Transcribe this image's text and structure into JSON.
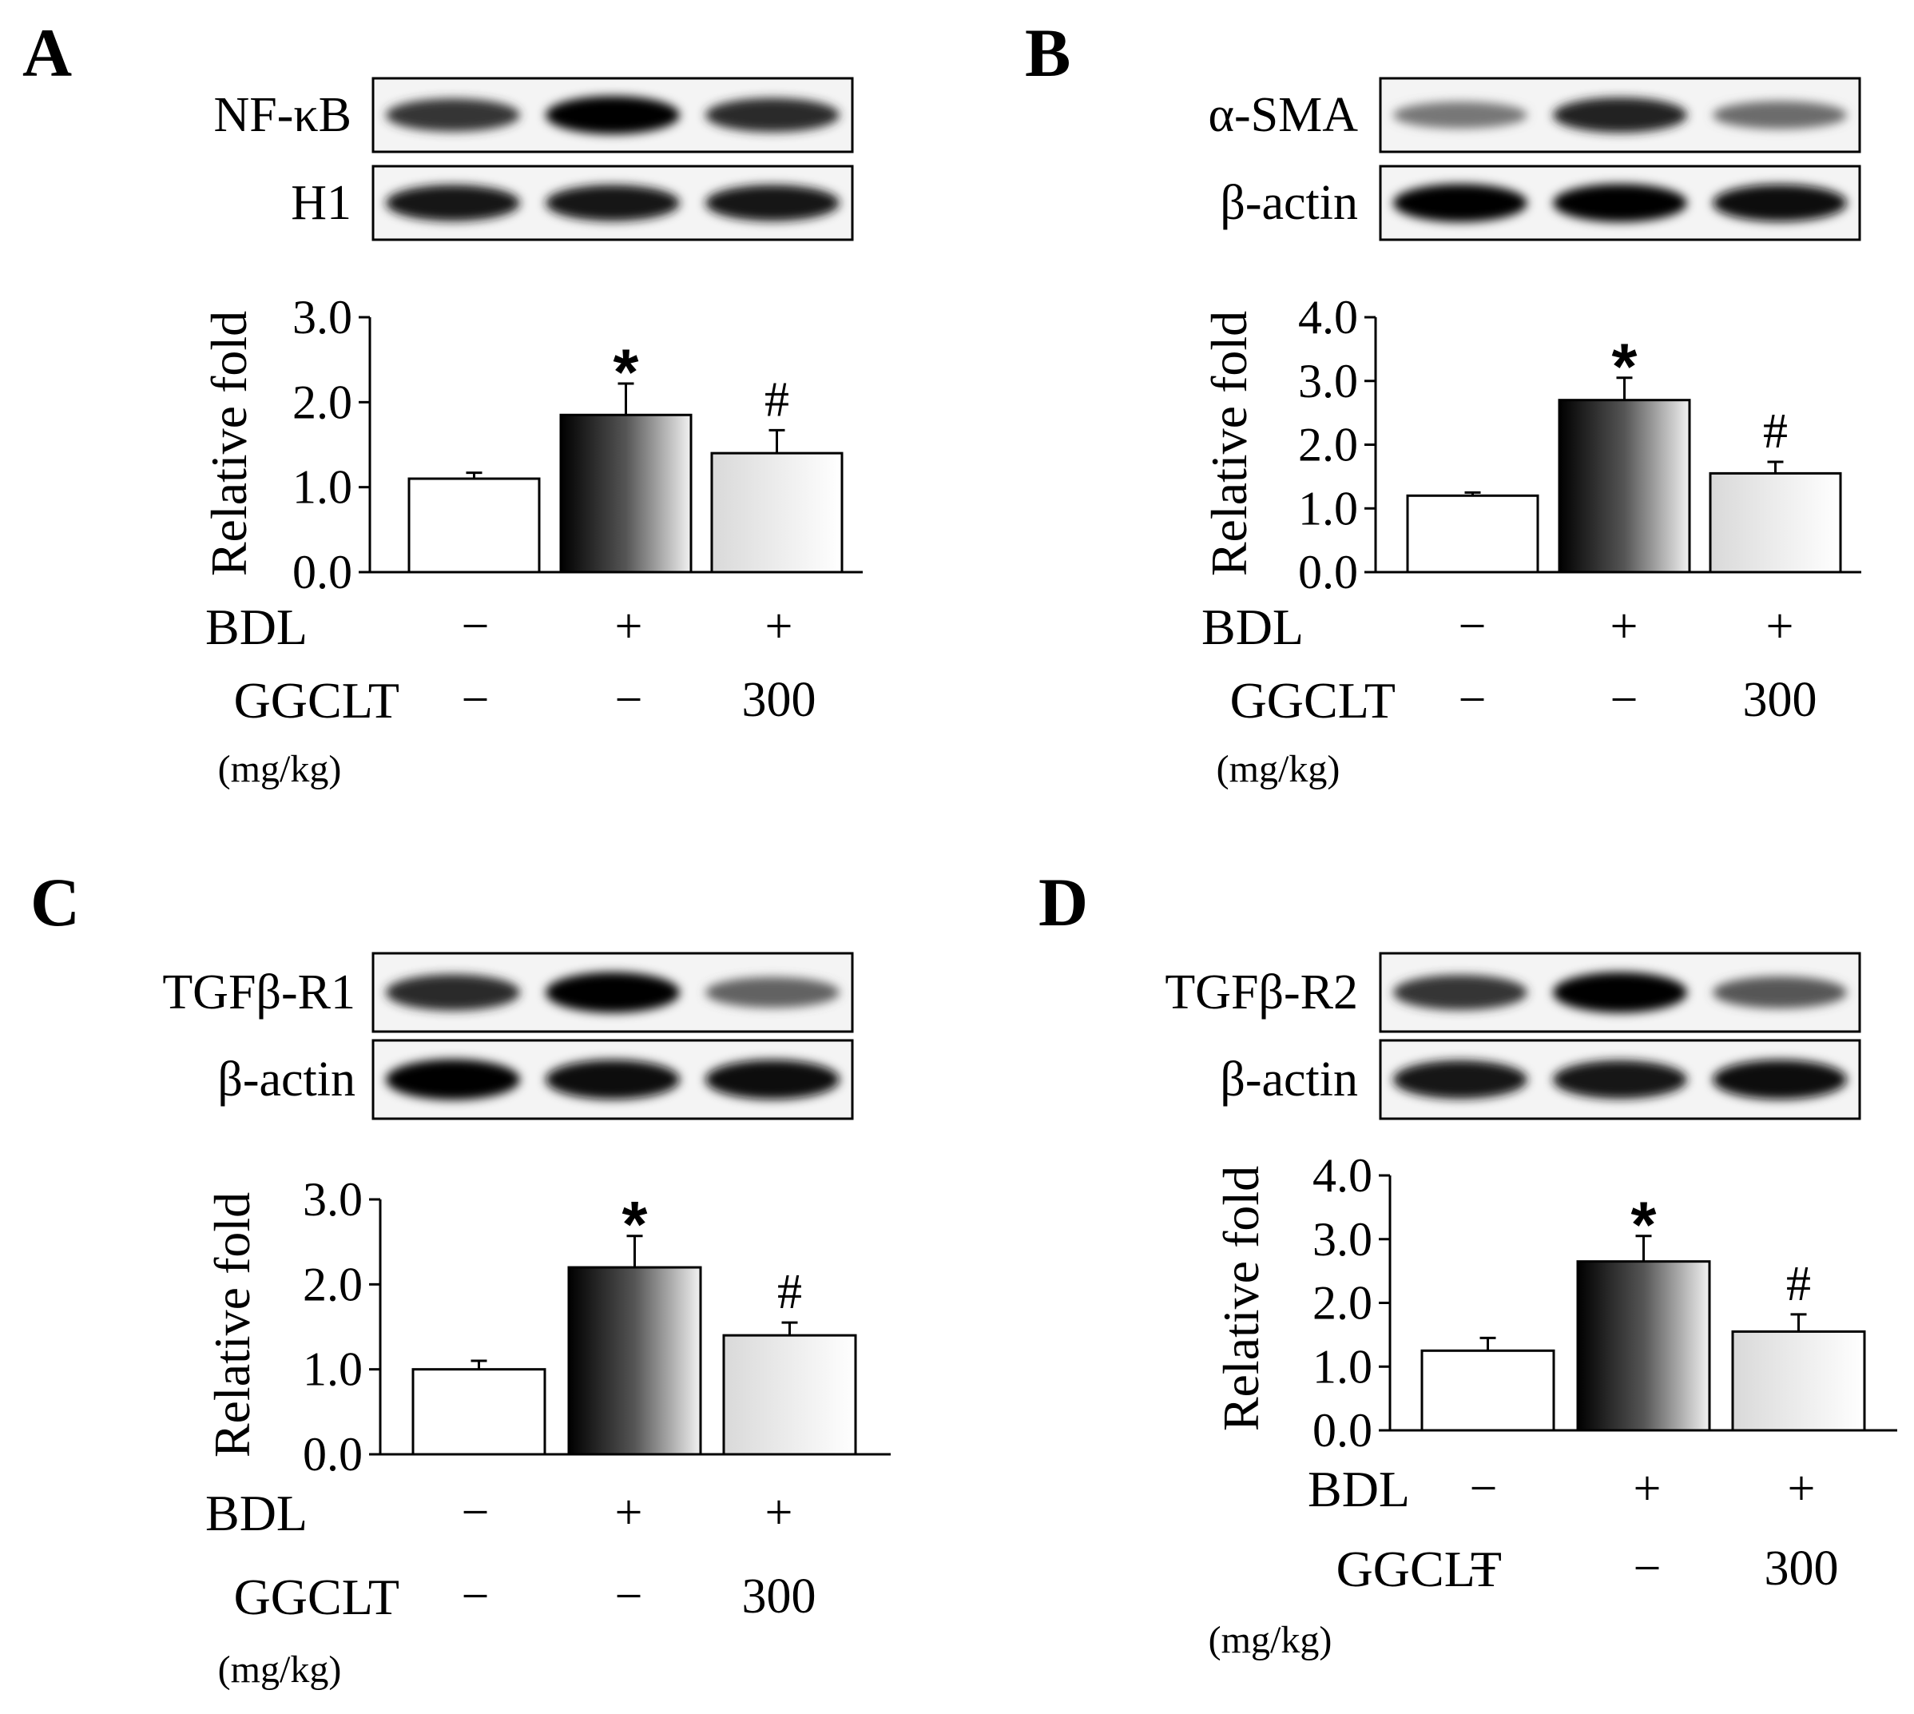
{
  "chart_data": [
    {
      "type": "bar",
      "panel_label": "A",
      "blot_labels": [
        "NF-κB",
        "H1"
      ],
      "ylabel": "Relative fold",
      "ylim": [
        0,
        3
      ],
      "yticks": [
        "0.0",
        "1.0",
        "2.0",
        "3.0"
      ],
      "values": [
        1.1,
        1.85,
        1.4
      ],
      "errors": [
        0.07,
        0.37,
        0.27
      ],
      "annotations": [
        "",
        "*",
        "#"
      ],
      "conditions": {
        "BDL": [
          "−",
          "+",
          "+"
        ],
        "GGCLT": [
          "−",
          "−",
          "300"
        ]
      }
    },
    {
      "type": "bar",
      "panel_label": "B",
      "blot_labels": [
        "α-SMA",
        "β-actin"
      ],
      "ylabel": "Relative fold",
      "ylim": [
        0,
        4
      ],
      "yticks": [
        "0.0",
        "1.0",
        "2.0",
        "3.0",
        "4.0"
      ],
      "values": [
        1.2,
        2.7,
        1.55
      ],
      "errors": [
        0.05,
        0.35,
        0.18
      ],
      "annotations": [
        "",
        "*",
        "#"
      ],
      "conditions": {
        "BDL": [
          "−",
          "+",
          "+"
        ],
        "GGCLT": [
          "−",
          "−",
          "300"
        ]
      }
    },
    {
      "type": "bar",
      "panel_label": "C",
      "blot_labels": [
        "TGFβ-R1",
        "β-actin"
      ],
      "ylabel": "Relative fold",
      "ylim": [
        0,
        3
      ],
      "yticks": [
        "0.0",
        "1.0",
        "2.0",
        "3.0"
      ],
      "values": [
        1.0,
        2.2,
        1.4
      ],
      "errors": [
        0.1,
        0.37,
        0.15
      ],
      "annotations": [
        "",
        "*",
        "#"
      ],
      "conditions": {
        "BDL": [
          "−",
          "+",
          "+"
        ],
        "GGCLT": [
          "−",
          "−",
          "300"
        ]
      }
    },
    {
      "type": "bar",
      "panel_label": "D",
      "blot_labels": [
        "TGFβ-R2",
        "β-actin"
      ],
      "ylabel": "Relative fold",
      "ylim": [
        0,
        4
      ],
      "yticks": [
        "0.0",
        "1.0",
        "2.0",
        "3.0",
        "4.0"
      ],
      "values": [
        1.25,
        2.65,
        1.55
      ],
      "errors": [
        0.2,
        0.4,
        0.27
      ],
      "annotations": [
        "",
        "*",
        "#"
      ],
      "conditions": {
        "BDL": [
          "−",
          "+",
          "+"
        ],
        "GGCLT": [
          "−",
          "−",
          "300"
        ]
      }
    }
  ],
  "row_labels": {
    "bdl": "BDL",
    "ggclt": "GGCLT",
    "unit": "(mg/kg)"
  },
  "colors": {
    "ink": "#000000",
    "paper": "#ffffff",
    "gradient_dark": "#000000",
    "gradient_light": "#f2f2f2"
  }
}
